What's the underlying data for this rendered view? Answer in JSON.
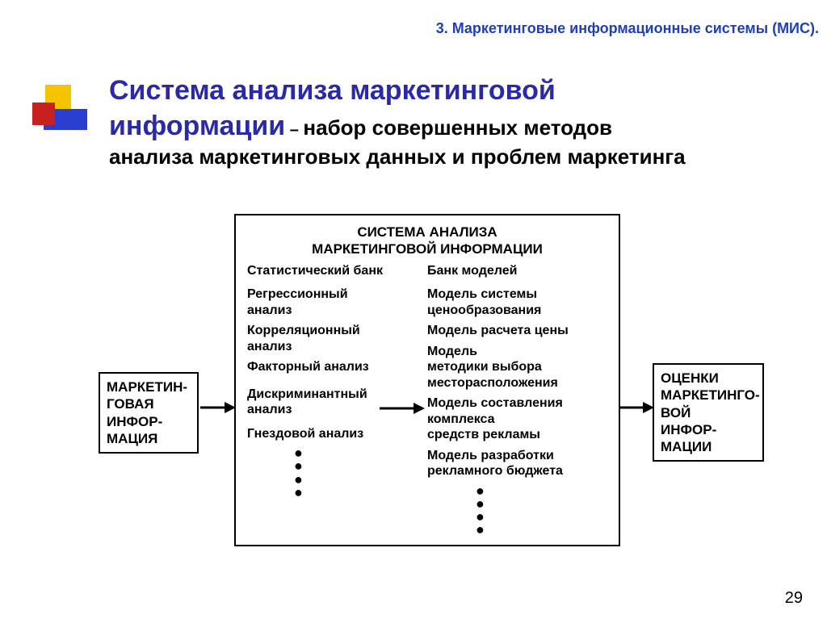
{
  "colors": {
    "header": "#1e3fb5",
    "title": "#2a2aa8",
    "red": "#c62020",
    "yellow": "#f4c400",
    "blue": "#2a3fd0",
    "black": "#000000"
  },
  "header": "3. Маркетинговые информационные системы (МИС).",
  "title": {
    "bold1": "Система анализа маркетинговой",
    "bold2": "информации",
    "dash": " – ",
    "rest1": "набор совершенных методов",
    "rest2": "анализа маркетинговых данных и проблем маркетинга"
  },
  "diagram": {
    "left_box": "МАРКЕТИН-\nГОВАЯ\nИНФОР-\nМАЦИЯ",
    "right_box": "ОЦЕНКИ\nМАРКЕТИНГО-\nВОЙ\nИНФОР-\nМАЦИИ",
    "center": {
      "title": "СИСТЕМА АНАЛИЗА\nМАРКЕТИНГОВОЙ ИНФОРМАЦИИ",
      "left_head": "Статистический банк",
      "right_head": "Банк моделей",
      "left_items": [
        "Регрессионный\nанализ",
        "Корреляционный\nанализ",
        "Факторный анализ",
        "Дискриминантный\nанализ",
        "Гнездовой анализ"
      ],
      "right_items": [
        "Модель системы\nценообразования",
        "Модель расчета цены",
        "Модель\nметодики выбора\nместорасположения",
        "Модель составления\nкомплекса\nсредств рекламы",
        "Модель разработки\nрекламного бюджета"
      ]
    }
  },
  "page": "29"
}
